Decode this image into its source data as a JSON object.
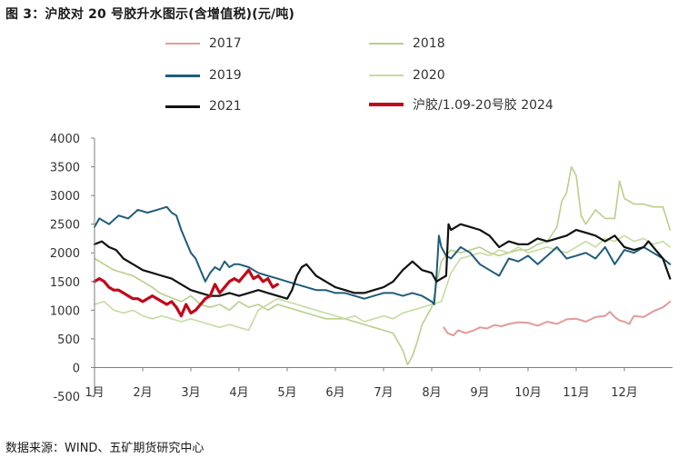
{
  "title": "图 3：沪胶对 20 号胶升水图示(含增值税)(元/吨)",
  "source": "数据来源：WIND、五矿期货研究中心",
  "chart_data": {
    "type": "line",
    "title": "图 3：沪胶对 20 号胶升水图示(含增值税)(元/吨)",
    "xlabel": "",
    "ylabel": "",
    "ylim": [
      -500,
      4000
    ],
    "yticks": [
      -500,
      0,
      500,
      1000,
      1500,
      2000,
      2500,
      3000,
      3500,
      4000
    ],
    "xlim": [
      0,
      12
    ],
    "xticks": [
      0,
      1,
      2,
      3,
      4,
      5,
      6,
      7,
      8,
      9,
      10,
      11
    ],
    "x_tick_labels": [
      "1月",
      "2月",
      "3月",
      "4月",
      "5月",
      "6月",
      "7月",
      "8月",
      "9月",
      "10月",
      "11月",
      "12月"
    ],
    "grid": false,
    "legend_placement": "top",
    "series": [
      {
        "name": "2017",
        "color": "#e39a9a",
        "width": 2,
        "x": [
          7.25,
          7.33,
          7.45,
          7.55,
          7.7,
          7.85,
          8.0,
          8.15,
          8.3,
          8.45,
          8.6,
          8.8,
          9.0,
          9.2,
          9.4,
          9.6,
          9.8,
          10.0,
          10.2,
          10.4,
          10.6,
          10.7,
          10.8,
          10.9,
          11.0,
          11.1,
          11.2,
          11.4,
          11.6,
          11.8,
          11.95
        ],
        "values": [
          700,
          600,
          560,
          650,
          600,
          640,
          700,
          680,
          740,
          720,
          760,
          790,
          780,
          730,
          800,
          760,
          840,
          850,
          800,
          880,
          900,
          970,
          880,
          820,
          800,
          760,
          900,
          880,
          980,
          1050,
          1150
        ]
      },
      {
        "name": "2018",
        "color": "#b9cf8c",
        "width": 1.6,
        "x": [
          0,
          0.2,
          0.4,
          0.6,
          0.8,
          1.0,
          1.2,
          1.35,
          1.5,
          1.65,
          1.8,
          2.0,
          2.2,
          2.4,
          2.6,
          2.8,
          3.0,
          3.2,
          3.4,
          3.6,
          3.8,
          4.0,
          4.2,
          4.4,
          4.6,
          4.8,
          5.0,
          5.2,
          5.4,
          5.6,
          5.8,
          6.0,
          6.2,
          6.4,
          6.5,
          6.6,
          6.7,
          6.8,
          6.9,
          7.0,
          7.1,
          7.2,
          7.4,
          7.6,
          7.8,
          8.0,
          8.2,
          8.4,
          8.6,
          8.8,
          9.0,
          9.2,
          9.4,
          9.6,
          9.7,
          9.8,
          9.9,
          10.0,
          10.1,
          10.2,
          10.4,
          10.6,
          10.8,
          10.9,
          11.0,
          11.2,
          11.4,
          11.6,
          11.8,
          11.95
        ],
        "values": [
          1900,
          1800,
          1700,
          1650,
          1600,
          1500,
          1400,
          1300,
          1250,
          1200,
          1150,
          1250,
          1100,
          1050,
          1100,
          1000,
          1150,
          1050,
          1100,
          1000,
          1100,
          1050,
          1000,
          950,
          900,
          850,
          850,
          850,
          800,
          750,
          700,
          650,
          600,
          300,
          50,
          200,
          450,
          750,
          900,
          1050,
          1450,
          1850,
          2050,
          2000,
          2050,
          2100,
          2000,
          1950,
          2000,
          2050,
          2050,
          2150,
          2200,
          2450,
          2900,
          3050,
          3500,
          3350,
          2650,
          2500,
          2750,
          2600,
          2600,
          3250,
          2950,
          2850,
          2850,
          2800,
          2800,
          2400
        ]
      },
      {
        "name": "2019",
        "color": "#1f5c7a",
        "width": 2,
        "x": [
          0,
          0.1,
          0.3,
          0.5,
          0.7,
          0.9,
          1.1,
          1.3,
          1.5,
          1.6,
          1.7,
          1.8,
          1.9,
          2.0,
          2.1,
          2.2,
          2.3,
          2.4,
          2.5,
          2.6,
          2.7,
          2.8,
          2.9,
          3.0,
          3.2,
          3.4,
          3.6,
          3.8,
          4.0,
          4.2,
          4.4,
          4.6,
          4.8,
          5.0,
          5.2,
          5.4,
          5.6,
          5.8,
          6.0,
          6.2,
          6.4,
          6.6,
          6.8,
          6.9,
          7.0,
          7.05,
          7.1,
          7.15,
          7.2,
          7.3,
          7.4,
          7.6,
          7.8,
          8.0,
          8.2,
          8.4,
          8.6,
          8.8,
          9.0,
          9.2,
          9.4,
          9.6,
          9.8,
          10.0,
          10.2,
          10.4,
          10.6,
          10.8,
          11.0,
          11.2,
          11.4,
          11.6,
          11.8,
          11.95
        ],
        "values": [
          2450,
          2600,
          2500,
          2650,
          2600,
          2750,
          2700,
          2750,
          2800,
          2700,
          2650,
          2400,
          2200,
          2000,
          1900,
          1700,
          1500,
          1650,
          1750,
          1700,
          1850,
          1750,
          1800,
          1800,
          1750,
          1650,
          1600,
          1550,
          1500,
          1450,
          1400,
          1350,
          1350,
          1300,
          1300,
          1250,
          1200,
          1250,
          1300,
          1300,
          1250,
          1300,
          1250,
          1200,
          1150,
          1100,
          1600,
          2300,
          2100,
          1950,
          1900,
          2100,
          2000,
          1800,
          1700,
          1600,
          1900,
          1850,
          1950,
          1800,
          1950,
          2100,
          1900,
          1950,
          2000,
          1900,
          2100,
          1800,
          2050,
          2000,
          2100,
          2000,
          1900,
          1800
        ]
      },
      {
        "name": "2020",
        "color": "#c6dba0",
        "width": 1.6,
        "x": [
          0,
          0.2,
          0.4,
          0.6,
          0.8,
          1.0,
          1.2,
          1.4,
          1.6,
          1.8,
          2.0,
          2.2,
          2.4,
          2.6,
          2.8,
          3.0,
          3.2,
          3.4,
          3.6,
          3.8,
          4.0,
          4.2,
          4.4,
          4.6,
          4.8,
          5.0,
          5.2,
          5.4,
          5.6,
          5.8,
          6.0,
          6.2,
          6.4,
          6.6,
          6.8,
          7.0,
          7.2,
          7.4,
          7.6,
          7.8,
          8.0,
          8.2,
          8.4,
          8.6,
          8.8,
          9.0,
          9.2,
          9.4,
          9.6,
          9.8,
          10.0,
          10.2,
          10.4,
          10.6,
          10.8,
          11.0,
          11.2,
          11.4,
          11.6,
          11.8,
          11.95
        ],
        "values": [
          1100,
          1150,
          1000,
          950,
          1000,
          900,
          850,
          900,
          850,
          800,
          850,
          800,
          750,
          700,
          750,
          700,
          650,
          1000,
          1100,
          1200,
          1150,
          1100,
          1050,
          1000,
          950,
          900,
          850,
          900,
          800,
          850,
          900,
          850,
          950,
          1000,
          1050,
          1100,
          1150,
          1650,
          1900,
          1950,
          2000,
          1950,
          2050,
          2000,
          2100,
          2000,
          2050,
          2100,
          2050,
          2000,
          2100,
          2200,
          2100,
          2250,
          2200,
          2300,
          2200,
          2250,
          2150,
          2200,
          2100
        ]
      },
      {
        "name": "2021",
        "color": "#111111",
        "width": 2.2,
        "x": [
          0,
          0.15,
          0.3,
          0.45,
          0.6,
          0.8,
          1.0,
          1.2,
          1.4,
          1.6,
          1.8,
          2.0,
          2.2,
          2.4,
          2.6,
          2.8,
          3.0,
          3.2,
          3.4,
          3.6,
          3.8,
          4.0,
          4.1,
          4.2,
          4.3,
          4.4,
          4.5,
          4.6,
          4.8,
          5.0,
          5.2,
          5.4,
          5.6,
          5.8,
          6.0,
          6.2,
          6.4,
          6.6,
          6.8,
          7.0,
          7.1,
          7.2,
          7.3,
          7.35,
          7.4,
          7.6,
          7.8,
          8.0,
          8.2,
          8.4,
          8.6,
          8.8,
          9.0,
          9.2,
          9.4,
          9.6,
          9.8,
          10.0,
          10.2,
          10.4,
          10.6,
          10.8,
          11.0,
          11.2,
          11.4,
          11.5,
          11.6,
          11.8,
          11.95
        ],
        "values": [
          2150,
          2200,
          2100,
          2050,
          1900,
          1800,
          1700,
          1650,
          1600,
          1550,
          1450,
          1350,
          1300,
          1250,
          1250,
          1300,
          1250,
          1300,
          1350,
          1300,
          1250,
          1200,
          1350,
          1600,
          1750,
          1800,
          1700,
          1600,
          1500,
          1400,
          1350,
          1300,
          1300,
          1350,
          1400,
          1500,
          1700,
          1850,
          1700,
          1650,
          1500,
          1550,
          1600,
          2500,
          2400,
          2500,
          2450,
          2400,
          2300,
          2100,
          2200,
          2150,
          2150,
          2250,
          2200,
          2250,
          2300,
          2400,
          2350,
          2300,
          2200,
          2300,
          2100,
          2050,
          2100,
          2200,
          2100,
          1900,
          1550
        ]
      },
      {
        "name": "沪胶/1.09-20号胶 2024",
        "color": "#c0091a",
        "width": 3.2,
        "x": [
          0,
          0.1,
          0.2,
          0.3,
          0.4,
          0.5,
          0.6,
          0.7,
          0.8,
          0.9,
          1.0,
          1.1,
          1.2,
          1.3,
          1.4,
          1.5,
          1.6,
          1.7,
          1.8,
          1.9,
          2.0,
          2.1,
          2.2,
          2.3,
          2.4,
          2.5,
          2.6,
          2.7,
          2.8,
          2.9,
          3.0,
          3.1,
          3.2,
          3.3,
          3.4,
          3.5,
          3.6,
          3.7,
          3.8
        ],
        "values": [
          1500,
          1550,
          1500,
          1400,
          1350,
          1350,
          1300,
          1250,
          1200,
          1200,
          1150,
          1200,
          1250,
          1200,
          1150,
          1100,
          1150,
          1050,
          900,
          1100,
          950,
          1000,
          1100,
          1200,
          1250,
          1450,
          1300,
          1400,
          1500,
          1550,
          1500,
          1600,
          1700,
          1550,
          1600,
          1500,
          1550,
          1400,
          1450
        ]
      }
    ]
  }
}
